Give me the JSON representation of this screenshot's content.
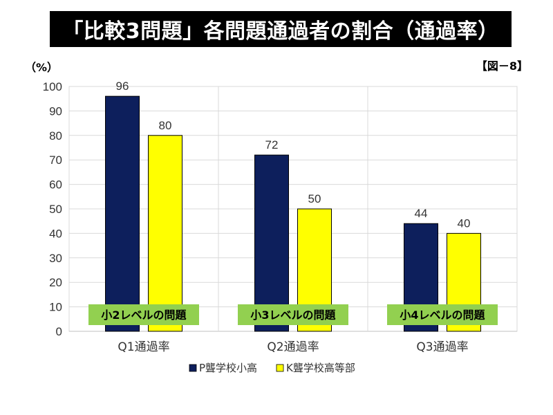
{
  "title": "「比較3問題」各問題通過者の割合（通過率）",
  "unit_label": "（%）",
  "figure_label": "【図－8】",
  "chart_data": {
    "type": "bar",
    "categories": [
      "Q1通過率",
      "Q2通過率",
      "Q3通過率"
    ],
    "series": [
      {
        "name": "P聾学校小高",
        "values": [
          96,
          72,
          44
        ],
        "color": "#0d1f5c"
      },
      {
        "name": "K聾学校高等部",
        "values": [
          80,
          50,
          40
        ],
        "color": "#ffff00"
      }
    ],
    "annotations": [
      "小2レベルの問題",
      "小3レベルの問題",
      "小4レベルの問題"
    ],
    "annotation_color": "#92d050",
    "ylim": [
      0,
      100
    ],
    "yticks": [
      0,
      10,
      20,
      30,
      40,
      50,
      60,
      70,
      80,
      90,
      100
    ],
    "grid": true,
    "legend_position": "bottom"
  }
}
